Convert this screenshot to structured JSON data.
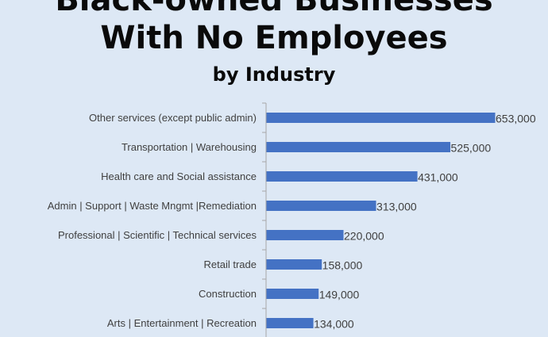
{
  "title_line1": "Black-owned Businesses",
  "title_line2": "With No Employees",
  "subtitle": "by Industry",
  "colors": {
    "bar": "#4472c4",
    "axis": "#a6a6a6",
    "text": "#404040",
    "background": "#dde8f5"
  },
  "chart_data": {
    "type": "bar",
    "orientation": "horizontal",
    "title": "Black-owned Businesses With No Employees",
    "subtitle": "by Industry",
    "categories": [
      "Other services (except public admin)",
      "Transportation | Warehousing",
      "Health care and Social assistance",
      "Admin | Support | Waste Mngmt |Remediation",
      "Professional | Scientific | Technical services",
      "Retail trade",
      "Construction",
      "Arts | Entertainment | Recreation"
    ],
    "values": [
      653000,
      525000,
      431000,
      313000,
      220000,
      158000,
      149000,
      134000
    ],
    "value_labels": [
      "653,000",
      "525,000",
      "431,000",
      "313,000",
      "220,000",
      "158,000",
      "149,000",
      "134,000"
    ],
    "xlim": [
      0,
      653000
    ],
    "grid": false,
    "legend": "none"
  }
}
